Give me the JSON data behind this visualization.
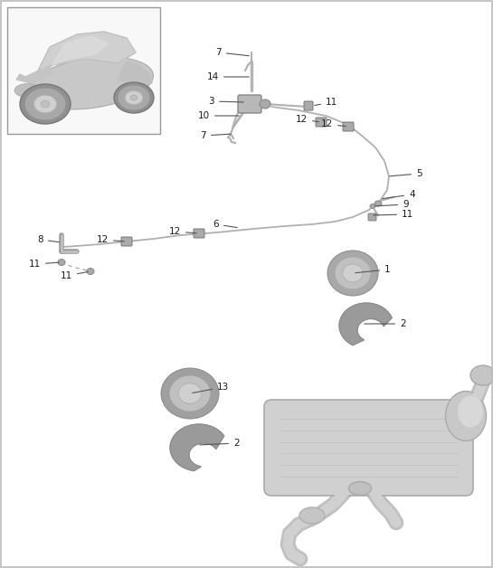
{
  "bg": "#f5f5f5",
  "figure_width": 5.45,
  "figure_height": 6.28,
  "dpi": 100
}
